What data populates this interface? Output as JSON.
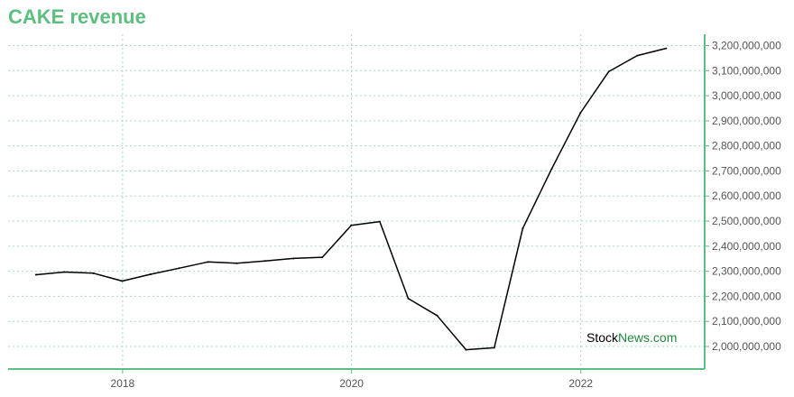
{
  "chart_data": {
    "type": "line",
    "title": "CAKE revenue",
    "xlabel": "",
    "ylabel": "",
    "x": [
      "2017-03-31",
      "2017-06-30",
      "2017-09-30",
      "2017-12-31",
      "2018-03-31",
      "2018-06-30",
      "2018-09-30",
      "2018-12-31",
      "2019-03-31",
      "2019-06-30",
      "2019-09-30",
      "2019-12-31",
      "2020-03-31",
      "2020-06-30",
      "2020-09-30",
      "2020-12-31",
      "2021-03-31",
      "2021-06-30",
      "2021-09-30",
      "2021-12-31",
      "2022-03-31",
      "2022-06-30",
      "2022-09-30"
    ],
    "series": [
      {
        "values": [
          2286000000,
          2297000000,
          2292000000,
          2261000000,
          2288000000,
          2312000000,
          2337000000,
          2332000000,
          2341000000,
          2351000000,
          2356000000,
          2483000000,
          2498000000,
          2191000000,
          2123000000,
          1987000000,
          1995000000,
          2471000000,
          2708000000,
          2932000000,
          3096000000,
          3160000000,
          3189000000
        ],
        "color": "#000000"
      }
    ],
    "x_ticks": [
      "2018",
      "2020",
      "2022"
    ],
    "y_ticks": [
      "2,000,000,000",
      "2,100,000,000",
      "2,200,000,000",
      "2,300,000,000",
      "2,400,000,000",
      "2,500,000,000",
      "2,600,000,000",
      "2,700,000,000",
      "2,800,000,000",
      "2,900,000,000",
      "3,000,000,000",
      "3,100,000,000",
      "3,200,000,000"
    ],
    "y_tick_values": [
      2000000000,
      2100000000,
      2200000000,
      2300000000,
      2400000000,
      2500000000,
      2600000000,
      2700000000,
      2800000000,
      2900000000,
      3000000000,
      3100000000,
      3200000000
    ],
    "ylim": [
      1910000000,
      3245000000
    ],
    "xlim": [
      "2017-01-01",
      "2023-01-31"
    ],
    "grid": true,
    "axis_side": "right",
    "colors": {
      "title": "#5bbf7f",
      "axis": "#5bbf7f",
      "grid": "#a9d8c0",
      "line": "#000000"
    }
  },
  "watermark": {
    "part1": "Stock",
    "part2": "News",
    "part3": ".com",
    "color_dark": "#000000",
    "color_green": "#1f8a3e"
  }
}
